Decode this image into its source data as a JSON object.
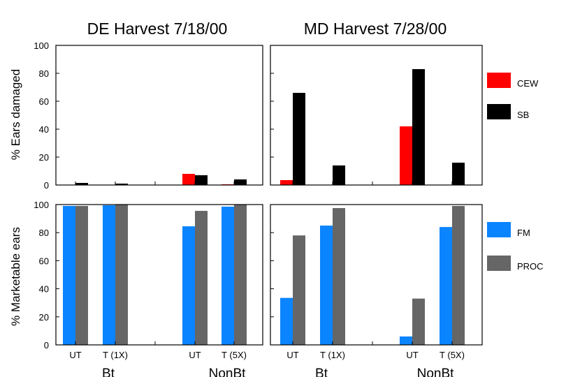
{
  "colors": {
    "CEW": "#ff0000",
    "SB": "#000000",
    "FM": "#0a84ff",
    "PROC": "#666666"
  },
  "icons": {
    "legend_swatch": "filled-rectangle"
  },
  "titles": {
    "left": "DE Harvest 7/18/00",
    "right": "MD Harvest 7/28/00"
  },
  "ylabels": {
    "top": "% Ears damaged",
    "bottom": "% Marketable ears"
  },
  "categories": [
    "UT",
    "T (1X)",
    "UT",
    "T (5X)"
  ],
  "groups": [
    "Bt",
    "NonBt"
  ],
  "legends": {
    "top": [
      "CEW",
      "SB"
    ],
    "bottom": [
      "FM",
      "PROC"
    ]
  },
  "chart_data": [
    {
      "type": "bar",
      "title": "DE Harvest 7/18/00",
      "ylabel": "% Ears damaged",
      "xlabel": "",
      "ylim": [
        0,
        100
      ],
      "yticks": [
        0,
        20,
        40,
        60,
        80,
        100
      ],
      "categories": [
        "UT",
        "T (1X)",
        "UT",
        "T (5X)"
      ],
      "series": [
        {
          "name": "CEW",
          "values": [
            0,
            0,
            8,
            0.5
          ]
        },
        {
          "name": "SB",
          "values": [
            1.5,
            1,
            7,
            4
          ]
        }
      ]
    },
    {
      "type": "bar",
      "title": "MD Harvest 7/28/00",
      "ylabel": "% Ears damaged",
      "xlabel": "",
      "ylim": [
        0,
        100
      ],
      "yticks": [
        0,
        20,
        40,
        60,
        80,
        100
      ],
      "categories": [
        "UT",
        "T (1X)",
        "UT",
        "T (5X)"
      ],
      "series": [
        {
          "name": "CEW",
          "values": [
            3.5,
            0,
            42,
            0
          ]
        },
        {
          "name": "SB",
          "values": [
            66,
            14,
            83,
            16
          ]
        }
      ]
    },
    {
      "type": "bar",
      "title": "",
      "ylabel": "% Marketable ears",
      "xlabel": "",
      "ylim": [
        0,
        100
      ],
      "yticks": [
        0,
        20,
        40,
        60,
        80,
        100
      ],
      "categories": [
        "UT",
        "T (1X)",
        "UT",
        "T (5X)"
      ],
      "groups": [
        "Bt",
        "NonBt"
      ],
      "series": [
        {
          "name": "FM",
          "values": [
            99,
            99.5,
            84.5,
            98.5
          ]
        },
        {
          "name": "PROC",
          "values": [
            99,
            100,
            95.5,
            100
          ]
        }
      ]
    },
    {
      "type": "bar",
      "title": "",
      "ylabel": "% Marketable ears",
      "xlabel": "",
      "ylim": [
        0,
        100
      ],
      "yticks": [
        0,
        20,
        40,
        60,
        80,
        100
      ],
      "categories": [
        "UT",
        "T (1X)",
        "UT",
        "T (5X)"
      ],
      "groups": [
        "Bt",
        "NonBt"
      ],
      "series": [
        {
          "name": "FM",
          "values": [
            33.5,
            85,
            6,
            84
          ]
        },
        {
          "name": "PROC",
          "values": [
            78,
            97.5,
            33,
            99
          ]
        }
      ]
    }
  ]
}
